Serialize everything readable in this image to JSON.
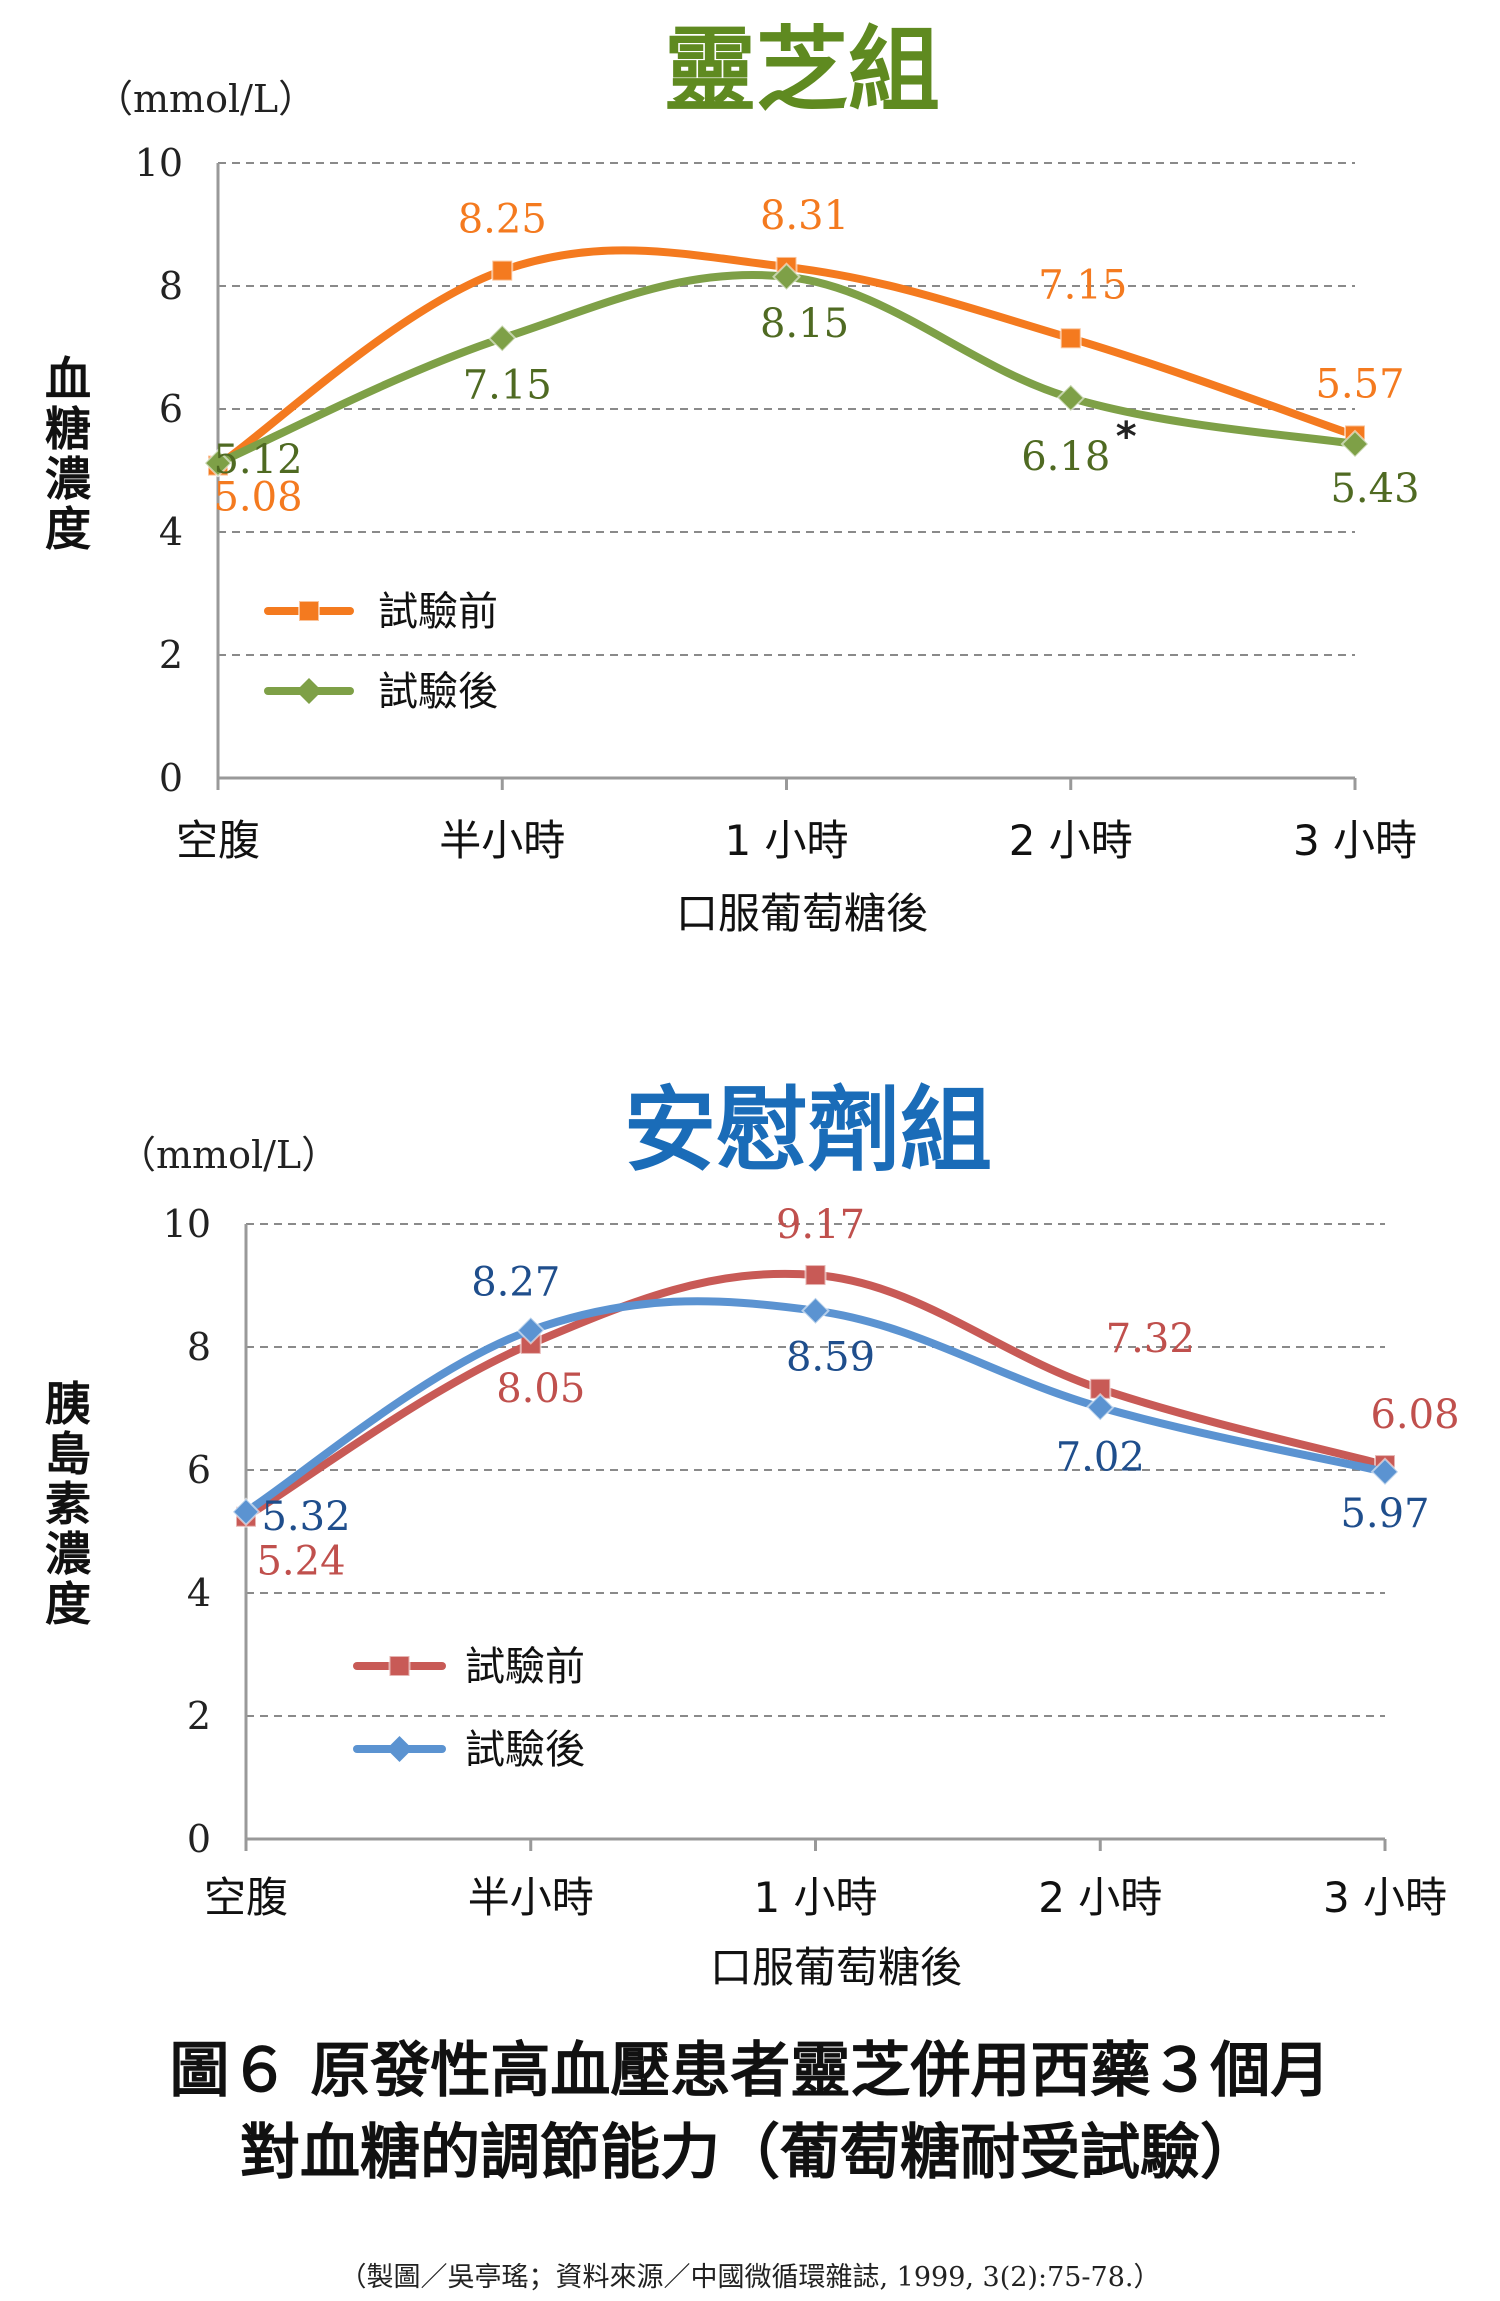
{
  "chart_data": [
    {
      "type": "line",
      "title": "靈芝組",
      "title_color": "#5f8a20",
      "unit": "（mmol/L）",
      "ylabel": "血糖濃度",
      "xlabel": "口服葡萄糖後",
      "categories": [
        "空腹",
        "半小時",
        "1 小時",
        "2 小時",
        "3 小時"
      ],
      "ylim": [
        0,
        10
      ],
      "yticks": [
        "0",
        "2",
        "4",
        "6",
        "8",
        "10"
      ],
      "grid": true,
      "legend_position": "bottom-left",
      "series": [
        {
          "name": "試驗前",
          "color": "#f47a1f",
          "label_color": "#f47a1f",
          "marker": "square",
          "values": [
            5.08,
            8.25,
            8.31,
            7.15,
            5.57
          ],
          "labels": [
            "5.08",
            "8.25",
            "8.31",
            "7.15",
            "5.57"
          ]
        },
        {
          "name": "試驗後",
          "color": "#7ea047",
          "label_color": "#4f6a22",
          "marker": "diamond",
          "values": [
            5.12,
            7.15,
            8.15,
            6.18,
            5.43
          ],
          "labels": [
            "5.12",
            "7.15",
            "8.15",
            "6.18",
            "5.43"
          ]
        }
      ],
      "annotation": "*"
    },
    {
      "type": "line",
      "title": "安慰劑組",
      "title_color": "#1a6cb8",
      "unit": "（mmol/L）",
      "ylabel": "胰島素濃度",
      "xlabel": "口服葡萄糖後",
      "categories": [
        "空腹",
        "半小時",
        "1 小時",
        "2 小時",
        "3 小時"
      ],
      "ylim": [
        0,
        10
      ],
      "yticks": [
        "0",
        "2",
        "4",
        "6",
        "8",
        "10"
      ],
      "grid": true,
      "legend_position": "bottom-left",
      "series": [
        {
          "name": "試驗前",
          "color": "#c85a56",
          "label_color": "#c0504d",
          "marker": "square",
          "values": [
            5.24,
            8.05,
            9.17,
            7.32,
            6.08
          ],
          "labels": [
            "5.24",
            "8.05",
            "9.17",
            "7.32",
            "6.08"
          ]
        },
        {
          "name": "試驗後",
          "color": "#5b93d1",
          "label_color": "#1f4e8c",
          "marker": "diamond",
          "values": [
            5.32,
            8.27,
            8.59,
            7.02,
            5.97
          ],
          "labels": [
            "5.32",
            "8.27",
            "8.59",
            "7.02",
            "5.97"
          ]
        }
      ]
    }
  ],
  "caption": {
    "line1": "圖６ 原發性高血壓患者靈芝併用西藥３個月",
    "line2": "對血糖的調節能力（葡萄糖耐受試驗）"
  },
  "credit": "（製圖／吳亭瑤；資料來源／中國微循環雜誌, 1999, 3(2):75-78.）"
}
